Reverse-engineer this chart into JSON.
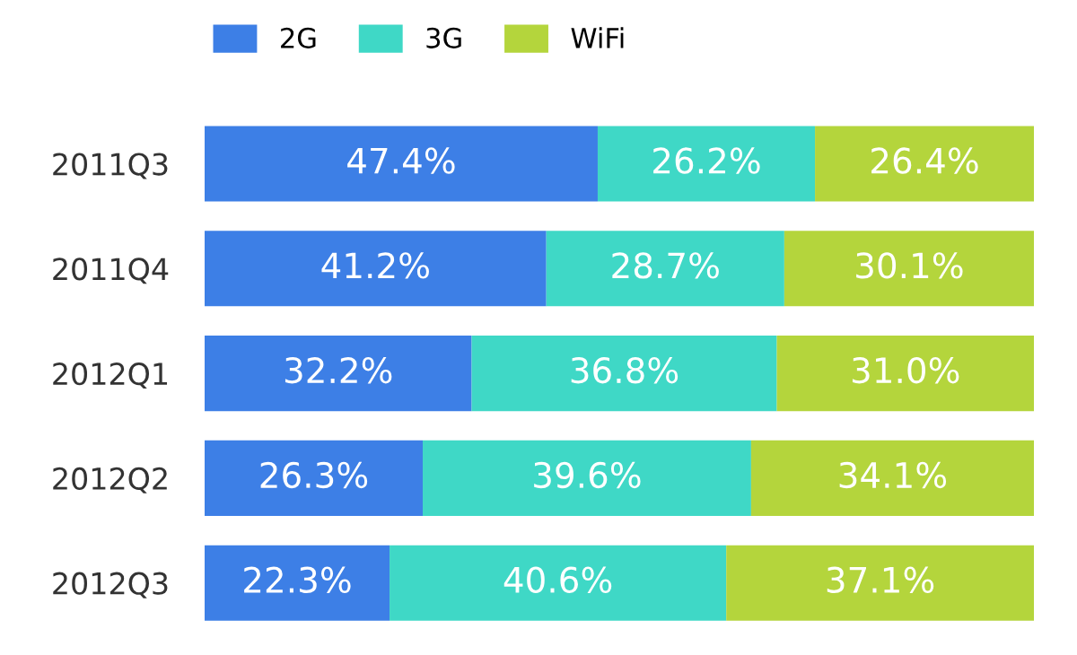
{
  "chart_data": {
    "type": "bar",
    "orientation": "horizontal",
    "stacked": true,
    "tick_labels": "y",
    "grid": false,
    "legend": "top left",
    "categories": [
      "2011Q3",
      "2011Q4",
      "2012Q1",
      "2012Q2",
      "2012Q3"
    ],
    "series": [
      {
        "name": "2G",
        "color": "#3d7fe6",
        "values": [
          47.4,
          41.2,
          32.2,
          26.3,
          22.3
        ],
        "value_labels": [
          "47.4%",
          "41.2%",
          "32.2%",
          "26.3%",
          "22.3%"
        ]
      },
      {
        "name": "3G",
        "color": "#3fd8c6",
        "values": [
          26.2,
          28.7,
          36.8,
          39.6,
          40.6
        ],
        "value_labels": [
          "26.2%",
          "28.7%",
          "36.8%",
          "39.6%",
          "40.6%"
        ]
      },
      {
        "name": "WiFi",
        "color": "#b4d53c",
        "values": [
          26.4,
          30.1,
          31.0,
          34.1,
          37.1
        ],
        "value_labels": [
          "26.4%",
          "30.1%",
          "31.0%",
          "34.1%",
          "37.1%"
        ]
      }
    ]
  }
}
